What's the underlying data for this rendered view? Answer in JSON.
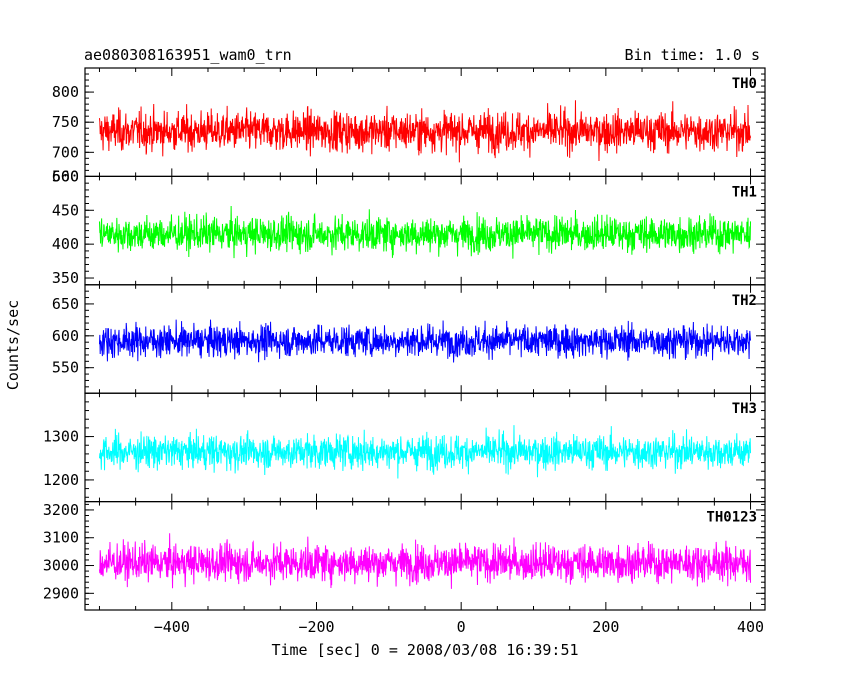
{
  "header": {
    "title": "ae080308163951_wam0_trn",
    "bin_time": "Bin time: 1.0 s"
  },
  "chart_data": {
    "type": "line",
    "xlabel": "Time [sec] 0 = 2008/03/08 16:39:51",
    "ylabel": "Counts/sec",
    "xlim": [
      -520,
      420
    ],
    "x_range": [
      -500,
      400
    ],
    "x_ticks": [
      -400,
      -200,
      0,
      200,
      400
    ],
    "x_tick_labels": [
      "−400",
      "−200",
      "0",
      "200",
      "400"
    ],
    "panels": [
      {
        "label": "TH0",
        "color": "#ff0000",
        "ylim": [
          660,
          840
        ],
        "ticks": [
          700,
          750,
          800
        ],
        "tick_labels": [
          "700",
          "750",
          "800"
        ],
        "bottom_label": "660",
        "mean": 735,
        "spread": 42
      },
      {
        "label": "TH1",
        "color": "#00ff00",
        "ylim": [
          340,
          500
        ],
        "ticks": [
          350,
          400,
          450
        ],
        "tick_labels": [
          "350",
          "400",
          "450"
        ],
        "top_label": "500",
        "mean": 415,
        "spread": 33
      },
      {
        "label": "TH2",
        "color": "#0000ff",
        "ylim": [
          510,
          680
        ],
        "ticks": [
          550,
          600,
          650
        ],
        "tick_labels": [
          "550",
          "600",
          "650"
        ],
        "mean": 592,
        "spread": 32
      },
      {
        "label": "TH3",
        "color": "#00ffff",
        "ylim": [
          1150,
          1400
        ],
        "ticks": [
          1200,
          1300
        ],
        "tick_labels": [
          "1200",
          "1300"
        ],
        "mean": 1265,
        "spread": 50
      },
      {
        "label": "TH0123",
        "color": "#ff00ff",
        "ylim": [
          2840,
          3230
        ],
        "ticks": [
          2900,
          3000,
          3100,
          3200
        ],
        "tick_labels": [
          "2900",
          "3000",
          "3100",
          "3200"
        ],
        "mean": 3010,
        "spread": 85
      }
    ]
  }
}
